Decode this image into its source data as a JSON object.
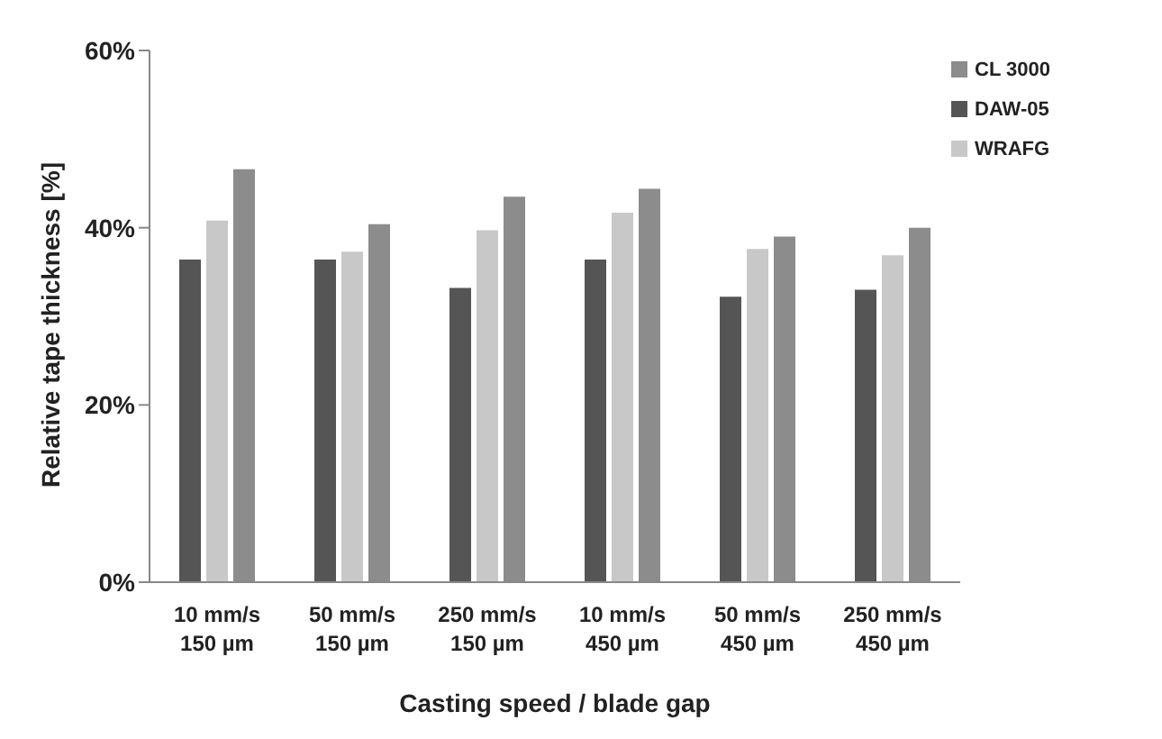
{
  "chart_data": {
    "type": "bar",
    "xlabel": "Casting speed / blade gap",
    "ylabel": "Relative tape thickness [%]",
    "categories": [
      "10 mm/s\n150 µm",
      "50 mm/s\n150 µm",
      "250 mm/s\n150 µm",
      "10 mm/s\n450 µm",
      "50 mm/s\n450 µm",
      "250 mm/s\n450 µm"
    ],
    "series": [
      {
        "name": "DAW-05",
        "color": "#555555",
        "values": [
          36.4,
          36.4,
          33.2,
          36.4,
          32.2,
          33.0
        ]
      },
      {
        "name": "WRAFG",
        "color": "#c8c8c8",
        "values": [
          40.8,
          37.3,
          39.7,
          41.7,
          37.6,
          36.9
        ]
      },
      {
        "name": "CL 3000",
        "color": "#8c8c8c",
        "values": [
          46.6,
          40.4,
          43.5,
          44.4,
          39.0,
          40.0
        ]
      }
    ],
    "ylim": [
      0,
      60
    ],
    "yticks": [
      {
        "value": 0,
        "label": "0%"
      },
      {
        "value": 20,
        "label": "20%"
      },
      {
        "value": 40,
        "label": "40%"
      },
      {
        "value": 60,
        "label": "60%"
      }
    ],
    "grid": false,
    "legend": "top right"
  }
}
